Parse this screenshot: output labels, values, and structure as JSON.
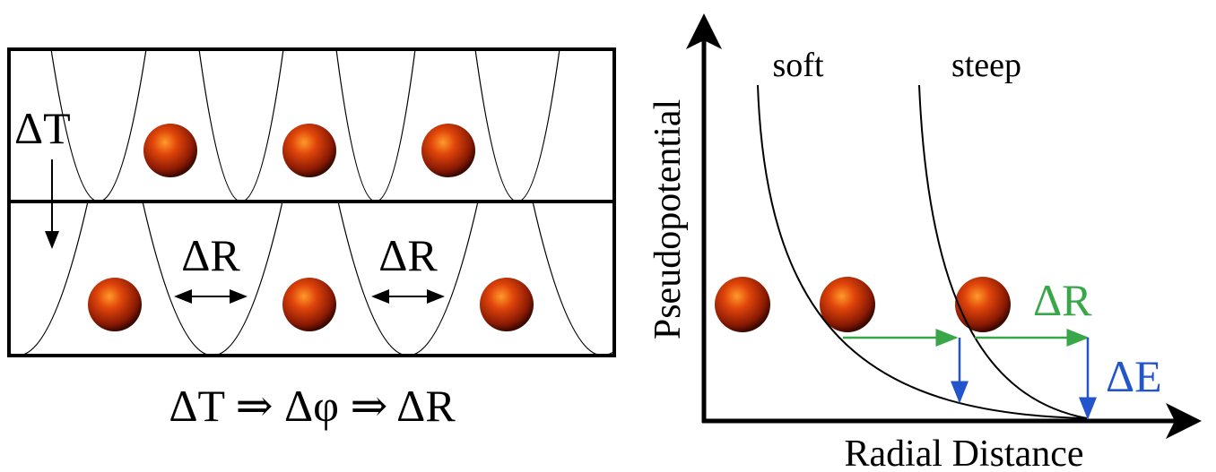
{
  "left_panel": {
    "delta_t_label": "ΔT",
    "delta_r_labels": [
      "ΔR",
      "ΔR"
    ],
    "caption": "ΔT ⇒ Δφ ⇒ ΔR"
  },
  "right_panel": {
    "curve_labels": [
      "soft",
      "steep"
    ],
    "y_axis_label": "Pseudopotential",
    "x_axis_label": "Radial Distance",
    "delta_r_label": "ΔR",
    "delta_e_label": "ΔE"
  }
}
